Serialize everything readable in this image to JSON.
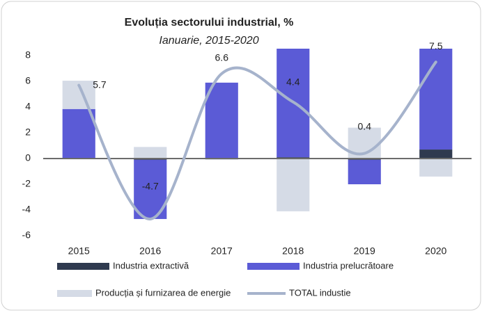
{
  "chart_data": {
    "type": "bar",
    "title": "Evoluția sectorului industrial, %",
    "subtitle": "Ianuarie, 2015-2020",
    "categories": [
      "2015",
      "2016",
      "2017",
      "2018",
      "2019",
      "2020"
    ],
    "series": [
      {
        "name": "Industria extractivă",
        "color": "#2f3a4f",
        "values": [
          0.05,
          -0.1,
          0.0,
          0.1,
          -0.1,
          0.7
        ]
      },
      {
        "name": "Industria prelucrătoare",
        "color": "#5b5bd6",
        "values": [
          3.8,
          -4.6,
          5.9,
          8.5,
          -1.9,
          7.9
        ]
      },
      {
        "name": "Producția și furnizarea de energie",
        "color": "#d5dbe6",
        "values": [
          2.2,
          0.9,
          -0.1,
          -4.1,
          2.4,
          -1.4
        ]
      },
      {
        "name": "TOTAL industie",
        "type": "line",
        "color": "#a6b3cc",
        "values": [
          5.7,
          -4.7,
          6.6,
          4.4,
          0.4,
          7.5
        ]
      }
    ],
    "ylim": [
      -6,
      8.6
    ],
    "yticks": [
      -6,
      -4,
      -2,
      0,
      2,
      4,
      6,
      8
    ],
    "stacked": true
  }
}
